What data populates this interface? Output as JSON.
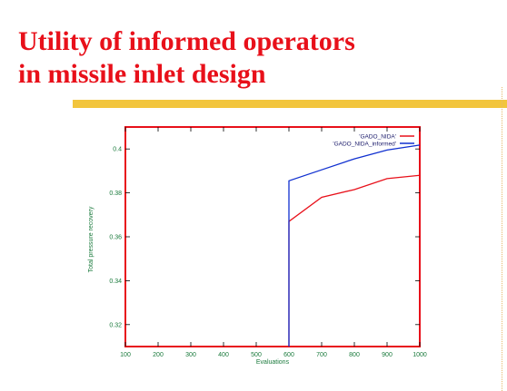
{
  "slide": {
    "title_line1": "Utility of informed operators",
    "title_line2": "in missile inlet design"
  },
  "colors": {
    "title": "#e8101a",
    "rule_bar": "#f2c53d",
    "frame": "#e8101a",
    "tick_labels": "#1a7a3c",
    "series_1": "#e8101a",
    "series_2": "#1030d0"
  },
  "chart_data": {
    "type": "line",
    "xlabel": "Evaluations",
    "ylabel": "Total pressure recovery",
    "xlim": [
      100,
      1000
    ],
    "ylim": [
      0.31,
      0.41
    ],
    "xticks": [
      100,
      200,
      300,
      400,
      500,
      600,
      700,
      800,
      900,
      1000
    ],
    "yticks": [
      0.32,
      0.34,
      0.36,
      0.38,
      0.4
    ],
    "ytick_labels": [
      "0.32",
      "0.34",
      "0.36",
      "0.38",
      "0.4"
    ],
    "grid": false,
    "legend_position": "top-right",
    "series": [
      {
        "name": "'GADO_NIDA'",
        "color": "#e8101a",
        "x": [
          600,
          700,
          800,
          900,
          1000
        ],
        "y": [
          0.367,
          0.378,
          0.3815,
          0.3865,
          0.388
        ],
        "x_ext": [
          600,
          700,
          800,
          900,
          1000
        ],
        "y_ext": [
          0.367,
          0.378,
          0.3815,
          0.3865,
          0.388
        ]
      },
      {
        "name": "'GADO_NIDA_informed'",
        "color": "#1030d0",
        "x": [
          600,
          700,
          800,
          900,
          1000
        ],
        "y": [
          0.3855,
          0.3905,
          0.3955,
          0.3995,
          0.4018
        ]
      }
    ]
  }
}
